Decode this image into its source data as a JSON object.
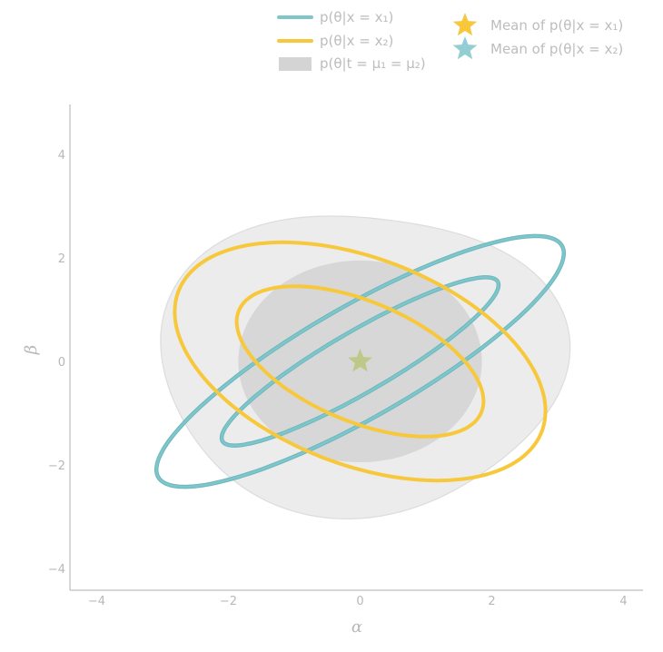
{
  "chart_data": {
    "type": "contour",
    "xlabel": "α",
    "ylabel": "β",
    "xlim": [
      -4.2,
      4.2
    ],
    "ylim": [
      -4.4,
      5.0
    ],
    "xticks": [
      -4,
      -2,
      0,
      2,
      4
    ],
    "yticks": [
      -4,
      -2,
      0,
      2,
      4
    ],
    "tick_labels": [
      "−4",
      "−2",
      "0",
      "2",
      "4"
    ],
    "legend_placement": "top",
    "colors": {
      "teal": "#7fc6cb",
      "yellow": "#f7c83c",
      "gray_outer": "#ececec",
      "gray_inner": "#d7d7d7"
    },
    "legend": [
      {
        "label": "p(θ|x = x₁)",
        "marker": "teal-line"
      },
      {
        "label": "p(θ|x = x₂)",
        "marker": "yellow-line"
      },
      {
        "label": "p(θ|t = μ₁ = μ₂)",
        "marker": "gray-box"
      },
      {
        "label": "Mean of p(θ|x = x₁)",
        "marker": "yellow-star"
      },
      {
        "label": "Mean of p(θ|x = x₂)",
        "marker": "teal-star"
      }
    ],
    "series": [
      {
        "name": "p(θ|x = x₁)",
        "kind": "contour",
        "center": [
          0,
          0
        ],
        "contours": [
          {
            "semi_major": 2.6,
            "semi_minor": 0.55,
            "angle_deg": 37
          },
          {
            "semi_major": 3.8,
            "semi_minor": 1.0,
            "angle_deg": 37
          }
        ]
      },
      {
        "name": "p(θ|x = x₂)",
        "kind": "contour",
        "center": [
          0,
          0
        ],
        "contours": [
          {
            "semi_major": 2.1,
            "semi_minor": 1.1,
            "angle_deg": -32
          },
          {
            "semi_major": 3.1,
            "semi_minor": 1.9,
            "angle_deg": -32
          }
        ]
      },
      {
        "name": "p(θ|t = μ₁ = μ₂)",
        "kind": "filled-contour",
        "center": [
          0,
          0
        ],
        "contours": [
          {
            "rx": 3.0,
            "ry": 3.0,
            "level": "outer"
          },
          {
            "rx": 1.85,
            "ry": 1.95,
            "level": "inner"
          }
        ]
      }
    ],
    "means": [
      {
        "name": "Mean of p(θ|x = x₁)",
        "x": 0,
        "y": 0
      },
      {
        "name": "Mean of p(θ|x = x₂)",
        "x": 0,
        "y": 0
      }
    ]
  }
}
